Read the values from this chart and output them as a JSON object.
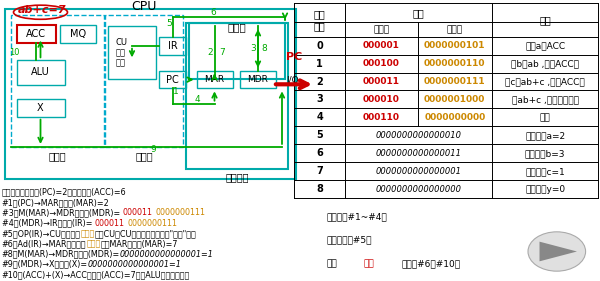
{
  "bg_color": "#ffffff",
  "table_rows": [
    {
      "addr": "0",
      "opcode": "000001",
      "addrcode": "0000000101",
      "note": "取数a至ACC",
      "merged": false
    },
    {
      "addr": "1",
      "opcode": "000100",
      "addrcode": "0000000110",
      "note": "乘b得ab ,存于ACC中",
      "merged": false
    },
    {
      "addr": "2",
      "opcode": "000011",
      "addrcode": "0000000111",
      "note": "加c得ab+c ,存于ACC中",
      "merged": false
    },
    {
      "addr": "3",
      "opcode": "000010",
      "addrcode": "0000001000",
      "note": "将ab+c ,存于主存单元",
      "merged": false
    },
    {
      "addr": "4",
      "opcode": "000110",
      "addrcode": "0000000000",
      "note": "停机",
      "merged": false
    },
    {
      "addr": "5",
      "opcode": "0000000000000010",
      "addrcode": "",
      "note": "原始数据a=2",
      "merged": true
    },
    {
      "addr": "6",
      "opcode": "0000000000000011",
      "addrcode": "",
      "note": "原始数据b=3",
      "merged": true
    },
    {
      "addr": "7",
      "opcode": "0000000000000001",
      "addrcode": "",
      "note": "原始数据c=1",
      "merged": true
    },
    {
      "addr": "8",
      "opcode": "0000000000000000",
      "addrcode": "",
      "note": "原始数据y=0",
      "merged": true
    }
  ],
  "bottom_lines": [
    {
      "text": "上一条指令取指后(PC)=2，执行后，(ACC)=6",
      "segments": [
        {
          "t": "上一条指令取指后(PC)=2，执行后，(ACC)=6",
          "c": "black"
        }
      ]
    },
    {
      "text": "#1：(PC)→MAR，导致(MAR)=2",
      "segments": [
        {
          "t": "#1：(PC)→MAR，导致(MAR)=2",
          "c": "black"
        }
      ]
    },
    {
      "text": "#3：M(MAR)→MDR，导致(MDR)= 000011 0000000111",
      "segments": [
        {
          "t": "#3：M(MAR)→MDR，导致(MDR)= ",
          "c": "black"
        },
        {
          "t": "000011",
          "c": "#cc0000"
        },
        {
          "t": " ",
          "c": "black"
        },
        {
          "t": "0000000111",
          "c": "#cc8800"
        }
      ]
    },
    {
      "text": "#4：(MDR)→IR，导致(IR)= 000011 0000000111",
      "segments": [
        {
          "t": "#4：(MDR)→IR，导致(IR)= ",
          "c": "black"
        },
        {
          "t": "000011",
          "c": "#cc0000"
        },
        {
          "t": " ",
          "c": "black"
        },
        {
          "t": "0000000111",
          "c": "#cc8800"
        }
      ]
    },
    {
      "text": "#5：OP(IR)→CU，指令的操作码送到CU，CU分析后得知，这是\"加法\"指令",
      "segments": [
        {
          "t": "#5：OP(IR)→CU，指令的",
          "c": "black"
        },
        {
          "t": "操作码",
          "c": "#cc8800"
        },
        {
          "t": "送到CU，CU分析后得知，这是\"加法\"指令",
          "c": "black"
        }
      ]
    },
    {
      "text": "#6：Ad(IR)→MAR，指令的地址码送到MAR，导致(MAR)=7",
      "segments": [
        {
          "t": "#6：Ad(IR)→MAR，指令的",
          "c": "black"
        },
        {
          "t": "地址码",
          "c": "#cc8800"
        },
        {
          "t": "送到MAR，导致(MAR)=7",
          "c": "black"
        }
      ]
    },
    {
      "text": "#8：M(MAR)→MDR，导致(MDR)=0000000000000001=1",
      "segments": [
        {
          "t": "#8：M(MAR)→MDR，导致(MDR)=",
          "c": "black"
        },
        {
          "t": "0000000000000001=1",
          "c": "black",
          "italic": true
        }
      ]
    },
    {
      "text": "#9：(MDR)→X，导致(X)=0000000000000001=1",
      "segments": [
        {
          "t": "#9：(MDR)→X，导致(X)=",
          "c": "black"
        },
        {
          "t": "0000000000000001=1",
          "c": "black",
          "italic": true
        }
      ]
    },
    {
      "text": "#10：(ACC)+(X)→ACC，导致(ACC)=7，由ALU实现加法运算",
      "segments": [
        {
          "t": "#10：(ACC)+(X)→ACC，导致(ACC)=7，由ALU实现加法运算",
          "c": "black"
        }
      ]
    }
  ],
  "bottom_right_lines": [
    {
      "text": "取指令（#1~#4）",
      "color": "black"
    },
    {
      "text": "分析指令（#5）",
      "color": "black"
    },
    {
      "text": "执行",
      "color": "black"
    },
    {
      "text": "加法",
      "color": "#cc0000"
    },
    {
      "text": "指令（#6～#10）",
      "color": "black"
    }
  ],
  "opcode_color": "#cc0000",
  "addrcode_color": "#cc8800",
  "cpu_box_color": "#00aaaa",
  "cpu_dashed_color": "#00aacc",
  "arrow_color": "#00aa00",
  "pc_arrow_color": "#cc0000"
}
